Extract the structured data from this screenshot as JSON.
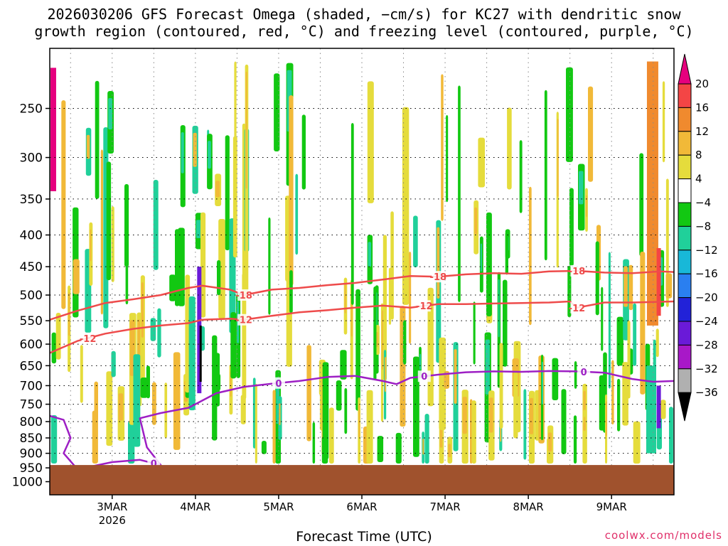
{
  "chart_data": {
    "type": "heatmap",
    "title_line1": "2026030206 GFS Forecast Omega (shaded, −cm/s) for KC27 with dendritic snow",
    "title_line2": "growth region (contoured, red, °C) and freezing level (contoured, purple, °C)",
    "xlabel": "Forecast Time (UTC)",
    "ylabel": "",
    "x_ticks": [
      {
        "label": "3MAR",
        "sub": "2026",
        "hour": 18
      },
      {
        "label": "4MAR",
        "sub": "",
        "hour": 42
      },
      {
        "label": "5MAR",
        "sub": "",
        "hour": 66
      },
      {
        "label": "6MAR",
        "sub": "",
        "hour": 90
      },
      {
        "label": "7MAR",
        "sub": "",
        "hour": 114
      },
      {
        "label": "8MAR",
        "sub": "",
        "hour": 138
      },
      {
        "label": "9MAR",
        "sub": "",
        "hour": 162
      }
    ],
    "xlim_hours": [
      0,
      180
    ],
    "y_ticks": [
      "250",
      "300",
      "350",
      "400",
      "450",
      "500",
      "550",
      "600",
      "650",
      "700",
      "750",
      "800",
      "850",
      "900",
      "950",
      "1000"
    ],
    "ylim_hpa": [
      1050,
      200
    ],
    "grid": true,
    "colorbar": {
      "levels": [
        "20",
        "16",
        "12",
        "8",
        "4",
        "−4",
        "−8",
        "−12",
        "−16",
        "−20",
        "−24",
        "−28",
        "−32",
        "−36"
      ],
      "colors": [
        "#e6007e",
        "#f44545",
        "#f08a2e",
        "#f1b938",
        "#e5dc3c",
        "#ffffff",
        "#12c812",
        "#20d09a",
        "#18b8d8",
        "#2a7ff0",
        "#2222d8",
        "#6a1ad8",
        "#a818c8",
        "#b0b0b0",
        "#000000"
      ]
    },
    "contours": [
      {
        "label": "-18",
        "color": "#ee4b4b",
        "points": [
          [
            0,
            548
          ],
          [
            8,
            530
          ],
          [
            16,
            515
          ],
          [
            24,
            508
          ],
          [
            32,
            500
          ],
          [
            40,
            487
          ],
          [
            44,
            483
          ],
          [
            52,
            490
          ],
          [
            56,
            500
          ],
          [
            64,
            490
          ],
          [
            72,
            487
          ],
          [
            80,
            482
          ],
          [
            88,
            478
          ],
          [
            96,
            472
          ],
          [
            104,
            466
          ],
          [
            112,
            467
          ],
          [
            120,
            463
          ],
          [
            128,
            461
          ],
          [
            136,
            462
          ],
          [
            144,
            458
          ],
          [
            152,
            457
          ],
          [
            160,
            460
          ],
          [
            168,
            461
          ],
          [
            176,
            458
          ],
          [
            180,
            459
          ]
        ],
        "label_hours": [
          56,
          112,
          152
        ]
      },
      {
        "label": "-12",
        "color": "#ee4b4b",
        "points": [
          [
            0,
            620
          ],
          [
            8,
            593
          ],
          [
            16,
            577
          ],
          [
            24,
            567
          ],
          [
            32,
            560
          ],
          [
            40,
            555
          ],
          [
            44,
            548
          ],
          [
            52,
            546
          ],
          [
            56,
            548
          ],
          [
            64,
            540
          ],
          [
            72,
            533
          ],
          [
            80,
            529
          ],
          [
            88,
            524
          ],
          [
            96,
            520
          ],
          [
            104,
            524
          ],
          [
            112,
            517
          ],
          [
            120,
            517
          ],
          [
            128,
            516
          ],
          [
            136,
            515
          ],
          [
            144,
            514
          ],
          [
            150,
            512
          ],
          [
            152,
            524
          ],
          [
            160,
            514
          ],
          [
            168,
            514
          ],
          [
            180,
            512
          ]
        ],
        "label_hours": [
          11,
          56,
          108,
          152
        ]
      },
      {
        "label": "0",
        "color": "#9d1fc4",
        "points": [
          [
            0,
            783
          ],
          [
            4,
            795
          ],
          [
            6,
            850
          ],
          [
            4,
            900
          ],
          [
            8,
            955
          ],
          [
            18,
            930
          ],
          [
            26,
            922
          ],
          [
            32,
            940
          ],
          [
            28,
            880
          ],
          [
            26,
            790
          ],
          [
            32,
            775
          ],
          [
            40,
            760
          ],
          [
            48,
            720
          ],
          [
            56,
            703
          ],
          [
            64,
            695
          ],
          [
            72,
            688
          ],
          [
            80,
            678
          ],
          [
            88,
            675
          ],
          [
            96,
            688
          ],
          [
            100,
            696
          ],
          [
            104,
            680
          ],
          [
            112,
            672
          ],
          [
            120,
            666
          ],
          [
            128,
            664
          ],
          [
            136,
            665
          ],
          [
            144,
            663
          ],
          [
            152,
            664
          ],
          [
            160,
            667
          ],
          [
            168,
            683
          ],
          [
            174,
            690
          ],
          [
            180,
            688
          ]
        ],
        "label_hours": [
          30,
          66,
          108,
          154
        ]
      }
    ],
    "terrain_hpa": 940
  },
  "credit": "coolwx.com/models"
}
